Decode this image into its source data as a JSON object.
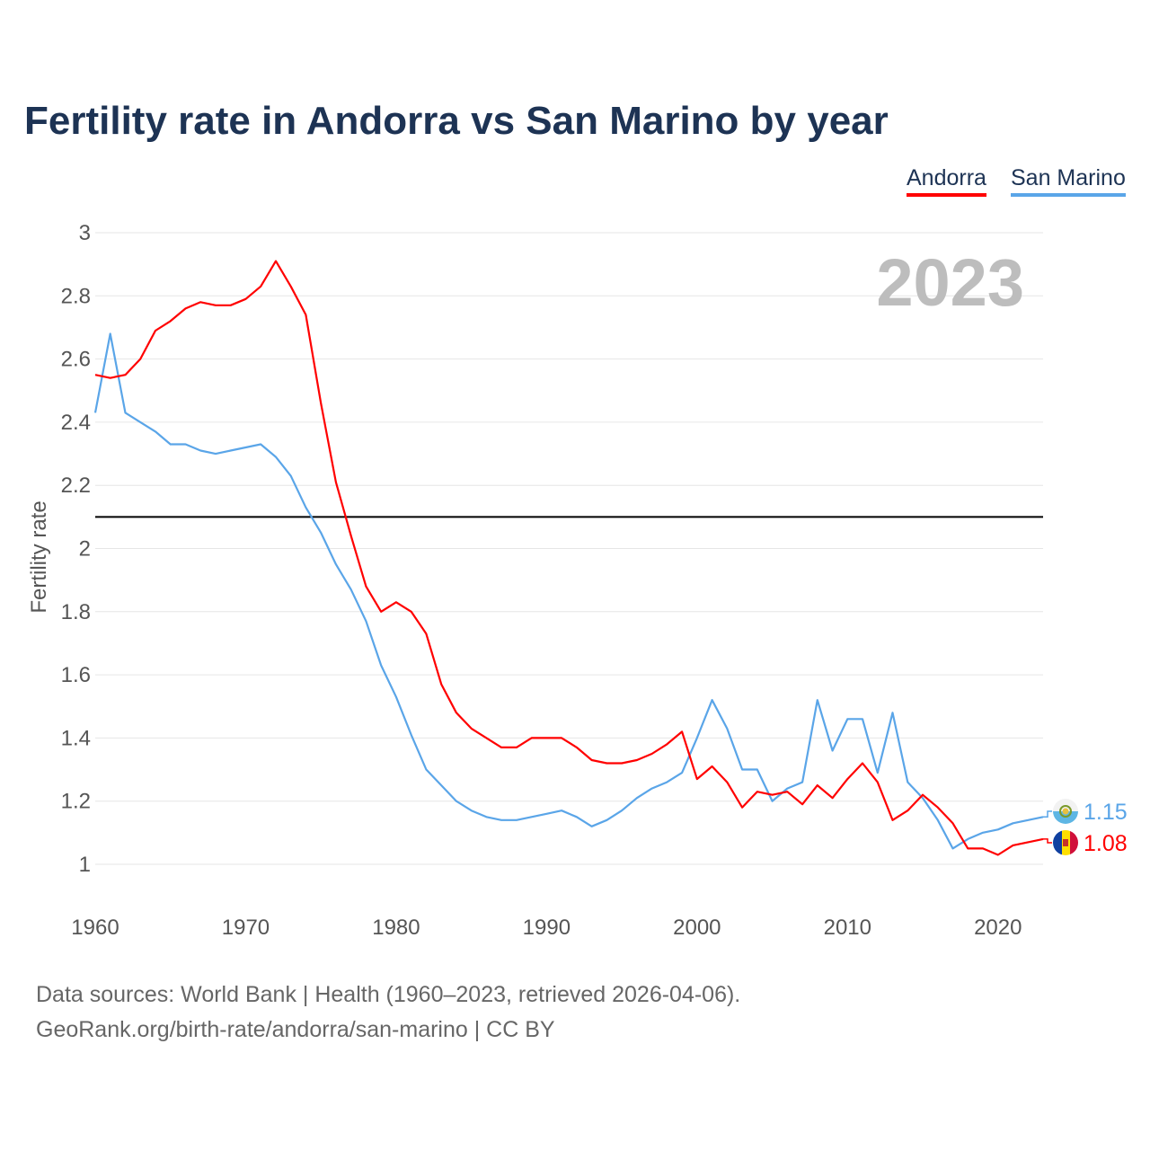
{
  "title": "Fertility rate in Andorra vs San Marino by year",
  "legend": [
    {
      "label": "Andorra",
      "color": "#ff0000"
    },
    {
      "label": "San Marino",
      "color": "#5aa5e8"
    }
  ],
  "year_watermark": "2023",
  "footer": {
    "line1": "Data sources: World Bank | Health (1960–2023, retrieved 2026-04-06).",
    "line2": "GeoRank.org/birth-rate/andorra/san-marino | CC BY"
  },
  "chart_data": {
    "type": "line",
    "title": "Fertility rate in Andorra vs San Marino by year",
    "xlabel": "",
    "ylabel": "Fertility rate",
    "xlim": [
      1960,
      2023
    ],
    "ylim": [
      1,
      3
    ],
    "yticks": [
      "1",
      "1.2",
      "1.4",
      "1.6",
      "1.8",
      "2",
      "2.2",
      "2.4",
      "2.6",
      "2.8",
      "3"
    ],
    "xticks": [
      "1960",
      "1970",
      "1980",
      "1990",
      "2000",
      "2010",
      "2020"
    ],
    "reference_line": 2.1,
    "grid": true,
    "legend_position": "top-right",
    "x_start": 1960,
    "series": [
      {
        "name": "Andorra",
        "color": "#ff0000",
        "end_label": "1.08",
        "values": [
          2.55,
          2.54,
          2.55,
          2.6,
          2.69,
          2.72,
          2.76,
          2.78,
          2.77,
          2.77,
          2.79,
          2.83,
          2.91,
          2.83,
          2.74,
          2.46,
          2.21,
          2.04,
          1.88,
          1.8,
          1.83,
          1.8,
          1.73,
          1.57,
          1.48,
          1.43,
          1.4,
          1.37,
          1.37,
          1.4,
          1.4,
          1.4,
          1.37,
          1.33,
          1.32,
          1.32,
          1.33,
          1.35,
          1.38,
          1.42,
          1.27,
          1.31,
          1.26,
          1.18,
          1.23,
          1.22,
          1.23,
          1.19,
          1.25,
          1.21,
          1.27,
          1.32,
          1.26,
          1.14,
          1.17,
          1.22,
          1.18,
          1.13,
          1.05,
          1.05,
          1.03,
          1.06,
          1.07,
          1.08
        ]
      },
      {
        "name": "San Marino",
        "color": "#5aa5e8",
        "end_label": "1.15",
        "values": [
          2.43,
          2.68,
          2.43,
          2.4,
          2.37,
          2.33,
          2.33,
          2.31,
          2.3,
          2.31,
          2.32,
          2.33,
          2.29,
          2.23,
          2.13,
          2.05,
          1.95,
          1.87,
          1.77,
          1.63,
          1.53,
          1.41,
          1.3,
          1.25,
          1.2,
          1.17,
          1.15,
          1.14,
          1.14,
          1.15,
          1.16,
          1.17,
          1.15,
          1.12,
          1.14,
          1.17,
          1.21,
          1.24,
          1.26,
          1.29,
          1.4,
          1.52,
          1.43,
          1.3,
          1.3,
          1.2,
          1.24,
          1.26,
          1.52,
          1.36,
          1.46,
          1.46,
          1.29,
          1.48,
          1.26,
          1.21,
          1.14,
          1.05,
          1.08,
          1.1,
          1.11,
          1.13,
          1.14,
          1.15
        ]
      }
    ]
  }
}
